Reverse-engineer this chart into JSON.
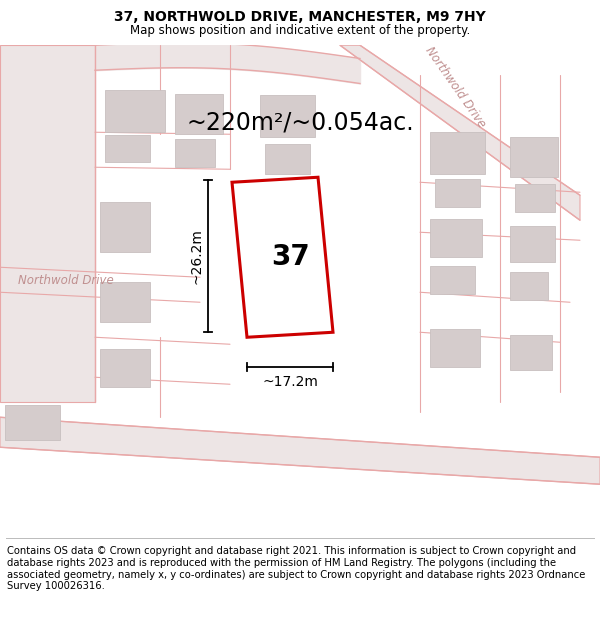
{
  "title": "37, NORTHWOLD DRIVE, MANCHESTER, M9 7HY",
  "subtitle": "Map shows position and indicative extent of the property.",
  "area_text": "~220m²/~0.054ac.",
  "width_label": "~17.2m",
  "height_label": "~26.2m",
  "number_label": "37",
  "footer_text": "Contains OS data © Crown copyright and database right 2021. This information is subject to Crown copyright and database rights 2023 and is reproduced with the permission of HM Land Registry. The polygons (including the associated geometry, namely x, y co-ordinates) are subject to Crown copyright and database rights 2023 Ordnance Survey 100026316.",
  "bg_color": "#ffffff",
  "map_bg": "#f7f0f0",
  "plot_color": "#cc0000",
  "title_fontsize": 10,
  "subtitle_fontsize": 8.5,
  "footer_fontsize": 7.2,
  "area_fontsize": 17,
  "number_fontsize": 20,
  "dim_fontsize": 10
}
